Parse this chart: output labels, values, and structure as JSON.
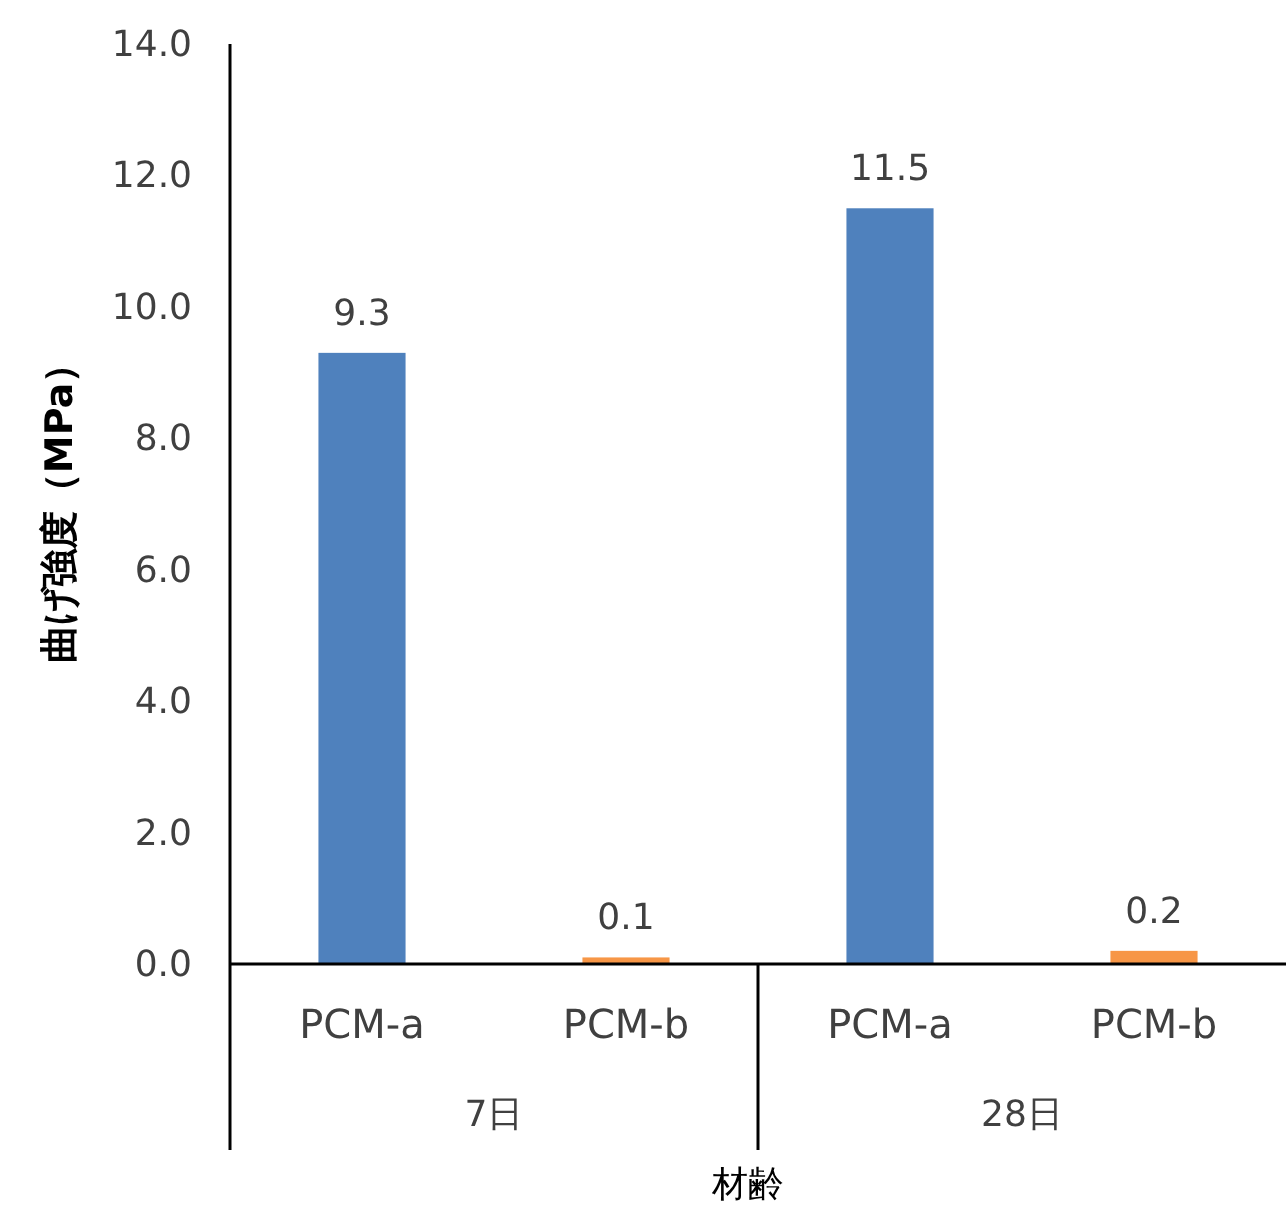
{
  "chart_data": {
    "type": "bar",
    "xlabel": "材齢",
    "ylabel": "曲げ強度（MPa）",
    "categories": [
      "PCM-a",
      "PCM-b",
      "PCM-a",
      "PCM-b"
    ],
    "values": [
      9.3,
      0.1,
      11.5,
      0.2
    ],
    "colors": [
      "#4f81bd",
      "#f79646",
      "#4f81bd",
      "#f79646"
    ],
    "data_labels": true,
    "ylim": [
      0,
      14
    ],
    "yticks": [
      {
        "value": 0,
        "label": "0.0"
      },
      {
        "value": 2,
        "label": "2.0"
      },
      {
        "value": 4,
        "label": "4.0"
      },
      {
        "value": 6,
        "label": "6.0"
      },
      {
        "value": 8,
        "label": "8.0"
      },
      {
        "value": 10,
        "label": "10.0"
      },
      {
        "value": 12,
        "label": "12.0"
      },
      {
        "value": 14,
        "label": "14.0"
      }
    ],
    "annotations": [
      "7日",
      "28日"
    ],
    "grid": false
  }
}
